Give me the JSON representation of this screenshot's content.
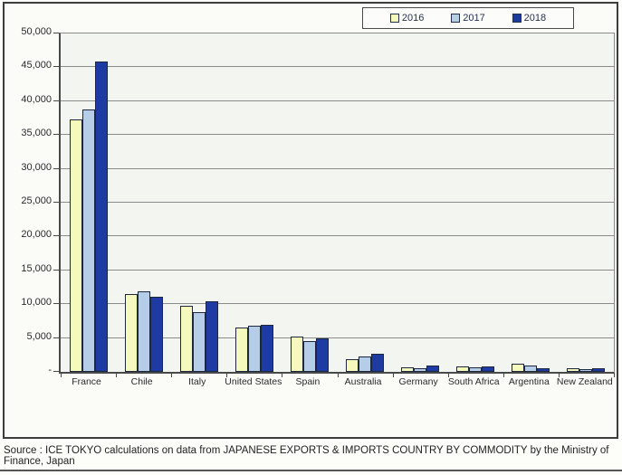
{
  "page": {
    "source_text": "Source : ICE TOKYO calculations on data from JAPANESE EXPORTS & IMPORTS COUNTRY BY COMMODITY by the Ministry of Finance, Japan"
  },
  "chart_data": {
    "type": "bar",
    "title": "",
    "xlabel": "",
    "ylabel": "",
    "categories": [
      "France",
      "Chile",
      "Italy",
      "United States",
      "Spain",
      "Australia",
      "Germany",
      "South Africa",
      "Argentina",
      "New Zealand"
    ],
    "series": [
      {
        "name": "2016",
        "color": "#f5f9bb",
        "values": [
          37300,
          11500,
          9700,
          6600,
          5200,
          1900,
          700,
          750,
          1200,
          500
        ]
      },
      {
        "name": "2017",
        "color": "#b6cde7",
        "values": [
          38800,
          11900,
          8800,
          6800,
          4600,
          2300,
          500,
          650,
          900,
          400
        ]
      },
      {
        "name": "2018",
        "color": "#1e3aa3",
        "values": [
          45900,
          11100,
          10400,
          7000,
          4900,
          2700,
          900,
          750,
          550,
          600
        ]
      }
    ],
    "ylim": [
      0,
      50000
    ],
    "ytick_step": 5000,
    "ytick_labels": [
      "-",
      "5,000",
      "10,000",
      "15,000",
      "20,000",
      "25,000",
      "30,000",
      "35,000",
      "40,000",
      "45,000",
      "50,000"
    ],
    "grid": true,
    "legend_position": "top-right"
  },
  "colors": {
    "bar_border": "#1c2840",
    "gridline": "#8c8c8c",
    "plot_background": "#f3f5f1",
    "frame_border": "#3d3d3d",
    "series_2016": "#f5f9bb",
    "series_2017": "#b6cde7",
    "series_2018": "#1e3aa3"
  }
}
